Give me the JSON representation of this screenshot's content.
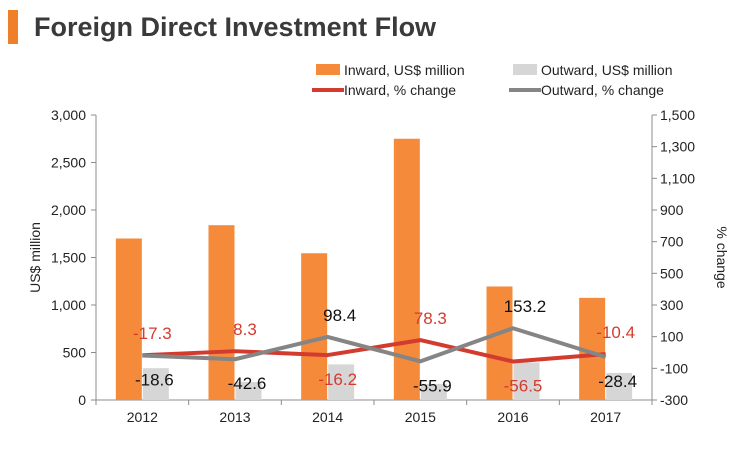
{
  "title": "Foreign Direct Investment Flow",
  "colors": {
    "accent": "#f07f2a",
    "inward_bar": "#f58a3a",
    "outward_bar": "#d6d6d6",
    "inward_line": "#d43b2f",
    "outward_line": "#858585",
    "inward_label": "#d43b2f",
    "outward_label": "#111111"
  },
  "chart_data": {
    "type": "bar",
    "categories": [
      "2012",
      "2013",
      "2014",
      "2015",
      "2016",
      "2017"
    ],
    "ylabel": "US$ million",
    "y2label": "% change",
    "ylim": [
      0,
      3000
    ],
    "y2lim": [
      -300,
      1500
    ],
    "yticks": [
      "0",
      "500",
      "1,000",
      "1,500",
      "2,000",
      "2,500",
      "3,000"
    ],
    "y2ticks": [
      "-300",
      "-100",
      "100",
      "300",
      "500",
      "700",
      "900",
      "1,100",
      "1,300",
      "1,500"
    ],
    "legend_position": "top",
    "series": [
      {
        "name": "Inward, US$ million",
        "kind": "bar",
        "values": [
          1700,
          1840,
          1545,
          2750,
          1195,
          1075
        ]
      },
      {
        "name": "Outward, US$ million",
        "kind": "bar",
        "values": [
          335,
          190,
          375,
          170,
          395,
          285
        ]
      },
      {
        "name": "Inward, % change",
        "kind": "line",
        "axis": "right",
        "values": [
          -17.3,
          8.3,
          -16.2,
          78.3,
          -56.5,
          -10.4
        ],
        "labels": [
          "-17.3",
          "8.3",
          "-16.2",
          "78.3",
          "-56.5",
          "-10.4"
        ]
      },
      {
        "name": "Outward, % change",
        "kind": "line",
        "axis": "right",
        "values": [
          -18.6,
          -42.6,
          98.4,
          -55.9,
          153.2,
          -28.4
        ],
        "labels": [
          "-18.6",
          "-42.6",
          "98.4",
          "-55.9",
          "153.2",
          "-28.4"
        ]
      }
    ]
  }
}
